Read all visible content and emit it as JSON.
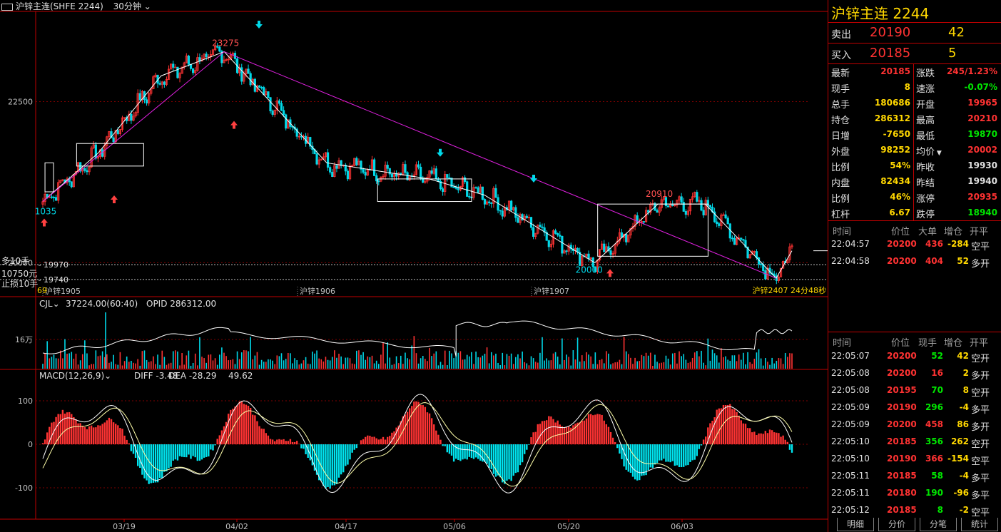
{
  "title_bar": {
    "instrument": "沪锌主连(SHFE 2244)",
    "period": "30分钟"
  },
  "colors": {
    "up": "#ff3333",
    "down": "#00d8e8",
    "accent": "#ffd700",
    "border": "#c00000",
    "trend": "#e020e0"
  },
  "price_axis": {
    "ticks": [
      {
        "value": 22500,
        "label": "22500"
      },
      {
        "value": 20000,
        "label": "20000"
      }
    ],
    "ylim": [
      19650,
      23900
    ]
  },
  "left_annotations": {
    "multi": "多10手",
    "cash": "10750元",
    "stop": "止损10手",
    "l1": "19970",
    "l2": "19740"
  },
  "price_annotations": {
    "high": "23275",
    "low_left": "1035",
    "p1": "20910",
    "p2": "20000",
    "right_label": "沪锌2407 24分48秒",
    "contract_left": "沪锌1905",
    "contract_mid": "沪锌1906",
    "contract_right": "沪锌1907",
    "small_left": "69"
  },
  "cjl": {
    "label": "CJL",
    "value_text": "37224.00(60:40)",
    "opid_label": "OPID",
    "opid_value": "286312.00",
    "axis_label": "16万"
  },
  "macd": {
    "label": "MACD(12,26,9)",
    "diff_label": "DIFF",
    "diff_value": "-3.48",
    "dea_label": "DEA",
    "dea_value": "-28.29",
    "macd_value": "49.62",
    "ticks": [
      "100",
      "0",
      "-100"
    ]
  },
  "x_axis": {
    "labels": [
      "03/19",
      "04/02",
      "04/17",
      "05/06",
      "05/20",
      "06/03"
    ]
  },
  "chart_data": {
    "type": "candlestick",
    "title": "",
    "x": [
      "03/19",
      "04/02",
      "04/17",
      "05/06",
      "05/20",
      "06/03"
    ],
    "price_path": [
      {
        "x": "03/12",
        "y": 20950
      },
      {
        "x": "03/19",
        "y": 21700
      },
      {
        "x": "03/27",
        "y": 22900
      },
      {
        "x": "04/04",
        "y": 23275
      },
      {
        "x": "04/17",
        "y": 21550
      },
      {
        "x": "04/30",
        "y": 21300
      },
      {
        "x": "05/06",
        "y": 21050
      },
      {
        "x": "05/20",
        "y": 20000
      },
      {
        "x": "05/28",
        "y": 20910
      },
      {
        "x": "06/03",
        "y": 20910
      },
      {
        "x": "06/12",
        "y": 19760
      },
      {
        "x": "06/14",
        "y": 20185
      }
    ],
    "highs_lows": {
      "high": 23275,
      "low_prev": 20000,
      "pivot": 20910
    },
    "ylim": [
      19650,
      23900
    ]
  },
  "quote": {
    "name": "沪锌主连",
    "code": "2244",
    "ask": {
      "label": "卖出",
      "price": "20190",
      "vol": "42"
    },
    "bid": {
      "label": "买入",
      "price": "20185",
      "vol": "5"
    },
    "rows": [
      {
        "l": "最新",
        "v": "20185",
        "c": "red",
        "l2": "涨跌",
        "v2": "245/1.23%",
        "c2": "red"
      },
      {
        "l": "现手",
        "v": "8",
        "c": "yel",
        "l2": "速涨",
        "v2": "-0.07%",
        "c2": "grn"
      },
      {
        "l": "总手",
        "v": "180686",
        "c": "yel",
        "l2": "开盘",
        "v2": "19965",
        "c2": "red"
      },
      {
        "l": "持仓",
        "v": "286312",
        "c": "yel",
        "l2": "最高",
        "v2": "20210",
        "c2": "red"
      },
      {
        "l": "日增",
        "v": "-7650",
        "c": "yel",
        "l2": "最低",
        "v2": "19870",
        "c2": "grn"
      },
      {
        "l": "外盘",
        "v": "98252",
        "c": "yel",
        "l2": "均价",
        "v2": "20002",
        "c2": "red"
      },
      {
        "l": "比例",
        "v": "54%",
        "c": "yel",
        "l2": "昨收",
        "v2": "19930",
        "c2": "wht"
      },
      {
        "l": "内盘",
        "v": "82434",
        "c": "yel",
        "l2": "昨结",
        "v2": "19940",
        "c2": "wht"
      },
      {
        "l": "比例",
        "v": "46%",
        "c": "yel",
        "l2": "涨停",
        "v2": "20935",
        "c2": "red"
      },
      {
        "l": "杠杆",
        "v": "6.67",
        "c": "yel",
        "l2": "跌停",
        "v2": "18940",
        "c2": "grn"
      }
    ]
  },
  "bigorders": {
    "headers": [
      "时间",
      "价位",
      "大单",
      "增仓",
      "开平"
    ],
    "rows": [
      {
        "t": "22:04:57",
        "p": "20200",
        "v": "436",
        "z": "-284",
        "k": "空平"
      },
      {
        "t": "22:04:58",
        "p": "20200",
        "v": "404",
        "z": "52",
        "k": "多开"
      }
    ]
  },
  "ticks": {
    "headers": [
      "时间",
      "价位",
      "现手",
      "增仓",
      "开平"
    ],
    "rows": [
      {
        "t": "22:05:07",
        "p": "20200",
        "v": "52",
        "z": "42",
        "k": "空开",
        "vc": "grn"
      },
      {
        "t": "22:05:08",
        "p": "20200",
        "v": "16",
        "z": "2",
        "k": "多开",
        "vc": "red"
      },
      {
        "t": "22:05:08",
        "p": "20195",
        "v": "70",
        "z": "8",
        "k": "空开",
        "vc": "grn"
      },
      {
        "t": "22:05:09",
        "p": "20190",
        "v": "296",
        "z": "-4",
        "k": "多平",
        "vc": "grn"
      },
      {
        "t": "22:05:09",
        "p": "20200",
        "v": "458",
        "z": "86",
        "k": "多开",
        "vc": "red"
      },
      {
        "t": "22:05:10",
        "p": "20185",
        "v": "356",
        "z": "262",
        "k": "空开",
        "vc": "grn"
      },
      {
        "t": "22:05:10",
        "p": "20190",
        "v": "366",
        "z": "-154",
        "k": "空平",
        "vc": "red"
      },
      {
        "t": "22:05:11",
        "p": "20185",
        "v": "58",
        "z": "-4",
        "k": "多平",
        "vc": "grn"
      },
      {
        "t": "22:05:11",
        "p": "20180",
        "v": "190",
        "z": "-96",
        "k": "多平",
        "vc": "grn"
      },
      {
        "t": "22:05:12",
        "p": "20185",
        "v": "8",
        "z": "-2",
        "k": "空平",
        "vc": "grn"
      }
    ]
  },
  "tabs": [
    "明细",
    "分价",
    "分笔",
    "统计"
  ]
}
